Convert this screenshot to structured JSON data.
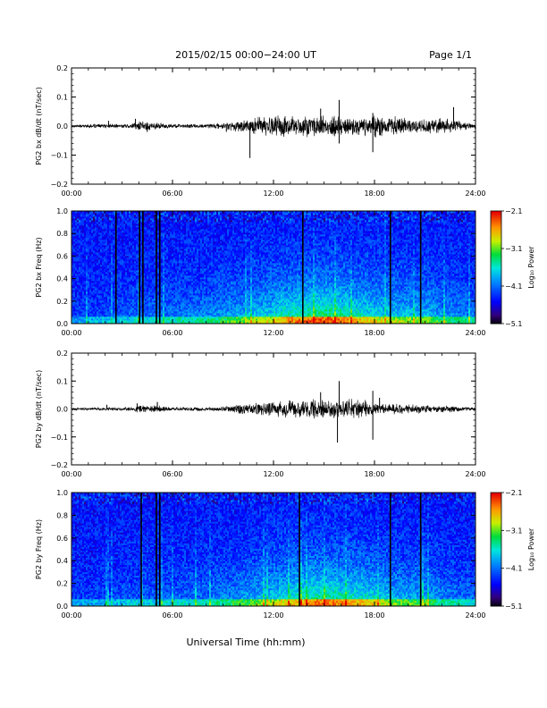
{
  "header": {
    "title": "2015/02/15  00:00−24:00 UT",
    "page": "Page 1/1"
  },
  "footer": {
    "xlabel": "Universal Time (hh:mm)"
  },
  "time_ticks": [
    "00:00",
    "06:00",
    "12:00",
    "18:00",
    "24:00"
  ],
  "chart_data": [
    {
      "type": "line",
      "ylabel": "PG2 bx dB/dt (nT/sec)",
      "x_range_hours": [
        0,
        24
      ],
      "ylim": [
        -0.2,
        0.2
      ],
      "yticks": [
        "0.2",
        "0.1",
        "0.0",
        "−0.1",
        "−0.2"
      ],
      "envelope": {
        "x_hours": [
          0,
          2,
          3.5,
          4.0,
          5.0,
          6,
          8,
          9,
          10,
          11,
          12,
          13,
          14,
          15,
          16,
          17,
          18,
          19,
          20,
          21,
          22,
          23,
          24
        ],
        "amplitude": [
          0.005,
          0.008,
          0.008,
          0.02,
          0.015,
          0.008,
          0.008,
          0.012,
          0.025,
          0.035,
          0.04,
          0.04,
          0.04,
          0.04,
          0.04,
          0.035,
          0.04,
          0.035,
          0.03,
          0.028,
          0.03,
          0.02,
          0.008
        ]
      },
      "spikes": [
        {
          "x_hours": 2.2,
          "y": 0.018
        },
        {
          "x_hours": 3.8,
          "y": 0.025
        },
        {
          "x_hours": 4.5,
          "y": -0.02
        },
        {
          "x_hours": 9.2,
          "y": -0.02
        },
        {
          "x_hours": 10.6,
          "y": -0.11
        },
        {
          "x_hours": 14.8,
          "y": 0.06
        },
        {
          "x_hours": 15.9,
          "y": 0.09
        },
        {
          "x_hours": 15.9,
          "y": -0.06
        },
        {
          "x_hours": 17.9,
          "y": -0.09
        },
        {
          "x_hours": 17.9,
          "y": 0.045
        },
        {
          "x_hours": 22.7,
          "y": 0.065
        }
      ]
    },
    {
      "type": "heatmap",
      "ylabel": "PG2 bx Freq (Hz)",
      "x_range_hours": [
        0,
        24
      ],
      "ylim": [
        0.0,
        1.0
      ],
      "yticks": [
        "1.0",
        "0.8",
        "0.6",
        "0.4",
        "0.2",
        "0.0"
      ],
      "colorbar": {
        "label": "Log₁₀ Power",
        "range": [
          -5.1,
          -2.1
        ],
        "ticks": [
          "−2.1",
          "−3.1",
          "−4.1",
          "−5.1"
        ]
      },
      "black_columns_hours": [
        2.6,
        4.0,
        4.2,
        5.0,
        5.2,
        13.7,
        18.9,
        20.7
      ],
      "activity_hours": [
        0,
        2,
        4,
        6,
        8,
        10,
        12,
        13,
        14,
        15,
        16,
        17,
        18,
        19,
        20,
        21,
        22,
        24
      ],
      "activity_level": [
        0.1,
        0.15,
        0.2,
        0.25,
        0.3,
        0.4,
        0.55,
        0.65,
        0.7,
        0.75,
        0.7,
        0.6,
        0.55,
        0.5,
        0.45,
        0.45,
        0.35,
        0.25
      ]
    },
    {
      "type": "line",
      "ylabel": "PG2 by dB/dt (nT/sec)",
      "x_range_hours": [
        0,
        24
      ],
      "ylim": [
        -0.2,
        0.2
      ],
      "yticks": [
        "0.2",
        "0.1",
        "0.0",
        "−0.1",
        "−0.2"
      ],
      "envelope": {
        "x_hours": [
          0,
          2,
          3.5,
          4.0,
          5.0,
          6,
          8,
          9,
          10,
          11,
          12,
          13,
          14,
          15,
          16,
          17,
          18,
          19,
          20,
          21,
          22,
          23,
          24
        ],
        "amplitude": [
          0.004,
          0.006,
          0.008,
          0.015,
          0.015,
          0.007,
          0.008,
          0.01,
          0.018,
          0.025,
          0.03,
          0.035,
          0.04,
          0.035,
          0.04,
          0.04,
          0.025,
          0.02,
          0.02,
          0.015,
          0.015,
          0.012,
          0.006
        ]
      },
      "spikes": [
        {
          "x_hours": 2.1,
          "y": 0.015
        },
        {
          "x_hours": 3.9,
          "y": 0.02
        },
        {
          "x_hours": 5.1,
          "y": 0.025
        },
        {
          "x_hours": 14.8,
          "y": 0.06
        },
        {
          "x_hours": 15.9,
          "y": 0.1
        },
        {
          "x_hours": 15.8,
          "y": -0.12
        },
        {
          "x_hours": 17.9,
          "y": 0.065
        },
        {
          "x_hours": 17.9,
          "y": -0.11
        },
        {
          "x_hours": 18.3,
          "y": 0.04
        }
      ]
    },
    {
      "type": "heatmap",
      "ylabel": "PG2 by Freq (Hz)",
      "x_range_hours": [
        0,
        24
      ],
      "ylim": [
        0.0,
        1.0
      ],
      "yticks": [
        "1.0",
        "0.8",
        "0.6",
        "0.4",
        "0.2",
        "0.0"
      ],
      "colorbar": {
        "label": "Log₁₀ Power",
        "range": [
          -5.1,
          -2.1
        ],
        "ticks": [
          "−2.1",
          "−3.1",
          "−4.1",
          "−5.1"
        ]
      },
      "black_columns_hours": [
        4.1,
        5.0,
        5.2,
        13.5,
        18.9,
        20.7
      ],
      "activity_hours": [
        0,
        2,
        4,
        6,
        8,
        10,
        12,
        13,
        14,
        15,
        16,
        17,
        18,
        19,
        20,
        21,
        22,
        24
      ],
      "activity_level": [
        0.1,
        0.12,
        0.18,
        0.2,
        0.25,
        0.35,
        0.5,
        0.6,
        0.65,
        0.7,
        0.65,
        0.6,
        0.55,
        0.45,
        0.4,
        0.4,
        0.3,
        0.2
      ]
    }
  ]
}
